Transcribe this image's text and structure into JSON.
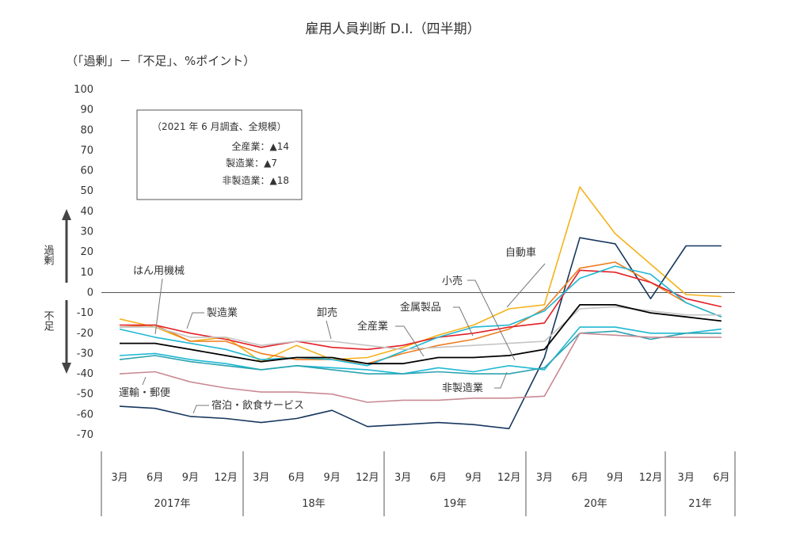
{
  "chart_data": {
    "type": "line",
    "title": "雇用人員判断 D.I.（四半期）",
    "subtitle": "（「過剰」－「不足」、%ポイント）",
    "ylim": [
      -70,
      100
    ],
    "yticks": [
      100,
      90,
      80,
      70,
      60,
      50,
      40,
      30,
      20,
      10,
      0,
      -10,
      -20,
      -30,
      -40,
      -50,
      -60,
      -70
    ],
    "x_month_labels": [
      "3月",
      "6月",
      "9月",
      "12月",
      "3月",
      "6月",
      "9月",
      "12月",
      "3月",
      "6月",
      "9月",
      "12月",
      "3月",
      "6月",
      "9月",
      "12月",
      "3月",
      "6月"
    ],
    "x_year_labels": [
      "2017年",
      "18年",
      "19年",
      "20年",
      "21年"
    ],
    "y_side_labels": {
      "surplus": "過剰",
      "shortage": "不足"
    },
    "legend": {
      "header": "（2021 年 6 月調査、全規模）",
      "lines": [
        "全産業：▲14",
        "製造業：▲7",
        "非製造業：▲18"
      ]
    },
    "series": [
      {
        "name": "自動車",
        "color": "#f5b21a",
        "values": [
          -13,
          -17,
          -24,
          -22,
          -34,
          -26,
          -33,
          -32,
          -27,
          -21,
          -16,
          -8,
          -6,
          52,
          29,
          14,
          -1,
          -2
        ]
      },
      {
        "name": "小売",
        "color": "#17375e",
        "values": [
          -56,
          -57,
          -61,
          -62,
          -64,
          -62,
          -58,
          -66,
          -65,
          -64,
          -65,
          -67,
          -32,
          27,
          24,
          -3,
          23,
          23
        ]
      },
      {
        "name": "金属製品",
        "color": "#ee7d20",
        "values": [
          -17,
          -16,
          -24,
          -24,
          -30,
          -33,
          -33,
          -35,
          -30,
          -26,
          -23,
          -18,
          -8,
          12,
          15,
          5,
          -5,
          -12
        ]
      },
      {
        "name": "製造業",
        "color": "#e31f26",
        "values": [
          -16,
          -16,
          -20,
          -23,
          -27,
          -24,
          -27,
          -28,
          -26,
          -22,
          -20,
          -17,
          -15,
          11,
          10,
          5,
          -3,
          -7
        ]
      },
      {
        "name": "はん用機械",
        "color": "#1fb8d4",
        "values": [
          -18,
          -22,
          -25,
          -28,
          -33,
          -32,
          -33,
          -36,
          -29,
          -22,
          -17,
          -16,
          -9,
          7,
          13,
          9,
          -5,
          -12
        ]
      },
      {
        "name": "卸売",
        "color": "#c4c4c4",
        "values": [
          -17,
          -17,
          -22,
          -22,
          -26,
          -24,
          -24,
          -26,
          -28,
          -27,
          -26,
          -25,
          -24,
          -8,
          -7,
          -9,
          -11,
          -11
        ]
      },
      {
        "name": "全産業",
        "color": "#000000",
        "values": [
          -25,
          -25,
          -28,
          -31,
          -34,
          -32,
          -32,
          -35,
          -35,
          -32,
          -32,
          -31,
          -28,
          -6,
          -6,
          -10,
          -12,
          -14
        ]
      },
      {
        "name": "非製造業",
        "color": "#1fb8d4",
        "values": [
          -31,
          -30,
          -33,
          -35,
          -38,
          -36,
          -37,
          -38,
          -40,
          -37,
          -39,
          -36,
          -38,
          -17,
          -17,
          -20,
          -20,
          -18
        ]
      },
      {
        "name": "運輸・郵便",
        "color": "#2ca3b0",
        "values": [
          -33,
          -31,
          -34,
          -36,
          -38,
          -36,
          -38,
          -40,
          -40,
          -39,
          -40,
          -40,
          -37,
          -20,
          -19,
          -23,
          -20,
          -20
        ]
      },
      {
        "name": "宿泊・飲食サービス",
        "color": "#c98a94",
        "values": [
          -40,
          -39,
          -44,
          -47,
          -49,
          -49,
          -50,
          -54,
          -53,
          -53,
          -52,
          -52,
          -51,
          -20,
          -21,
          -22,
          -22,
          -22
        ]
      }
    ]
  }
}
